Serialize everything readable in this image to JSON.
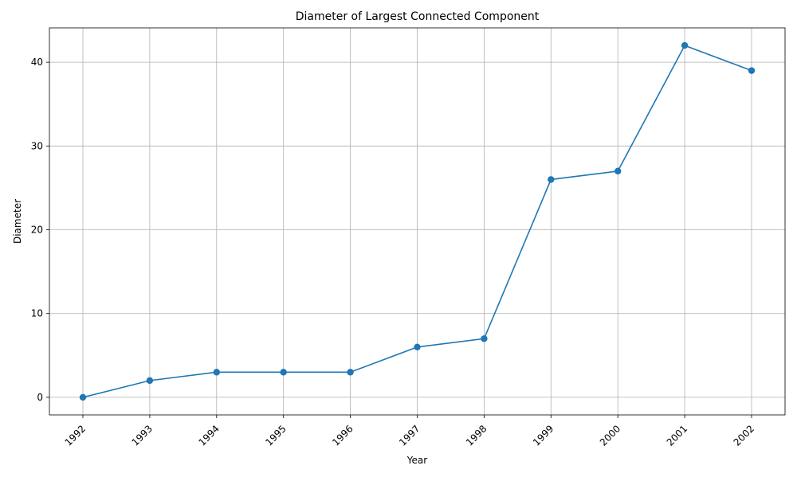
{
  "chart_data": {
    "type": "line",
    "title": "Diameter of Largest Connected Component",
    "xlabel": "Year",
    "ylabel": "Diameter",
    "x": [
      "1992",
      "1993",
      "1994",
      "1995",
      "1996",
      "1997",
      "1998",
      "1999",
      "2000",
      "2001",
      "2002"
    ],
    "series": [
      {
        "values": [
          0,
          2,
          3,
          3,
          3,
          6,
          7,
          26,
          27,
          42,
          39
        ]
      }
    ],
    "ylim": [
      -2.1,
      44.1
    ],
    "y_ticks": [
      0,
      10,
      20,
      30,
      40
    ],
    "grid": true,
    "markers": "circle",
    "x_tick_rotation": 45,
    "colors": {
      "line": "#1f77b4",
      "grid": "#b0b0b0",
      "axis": "#000000"
    }
  }
}
